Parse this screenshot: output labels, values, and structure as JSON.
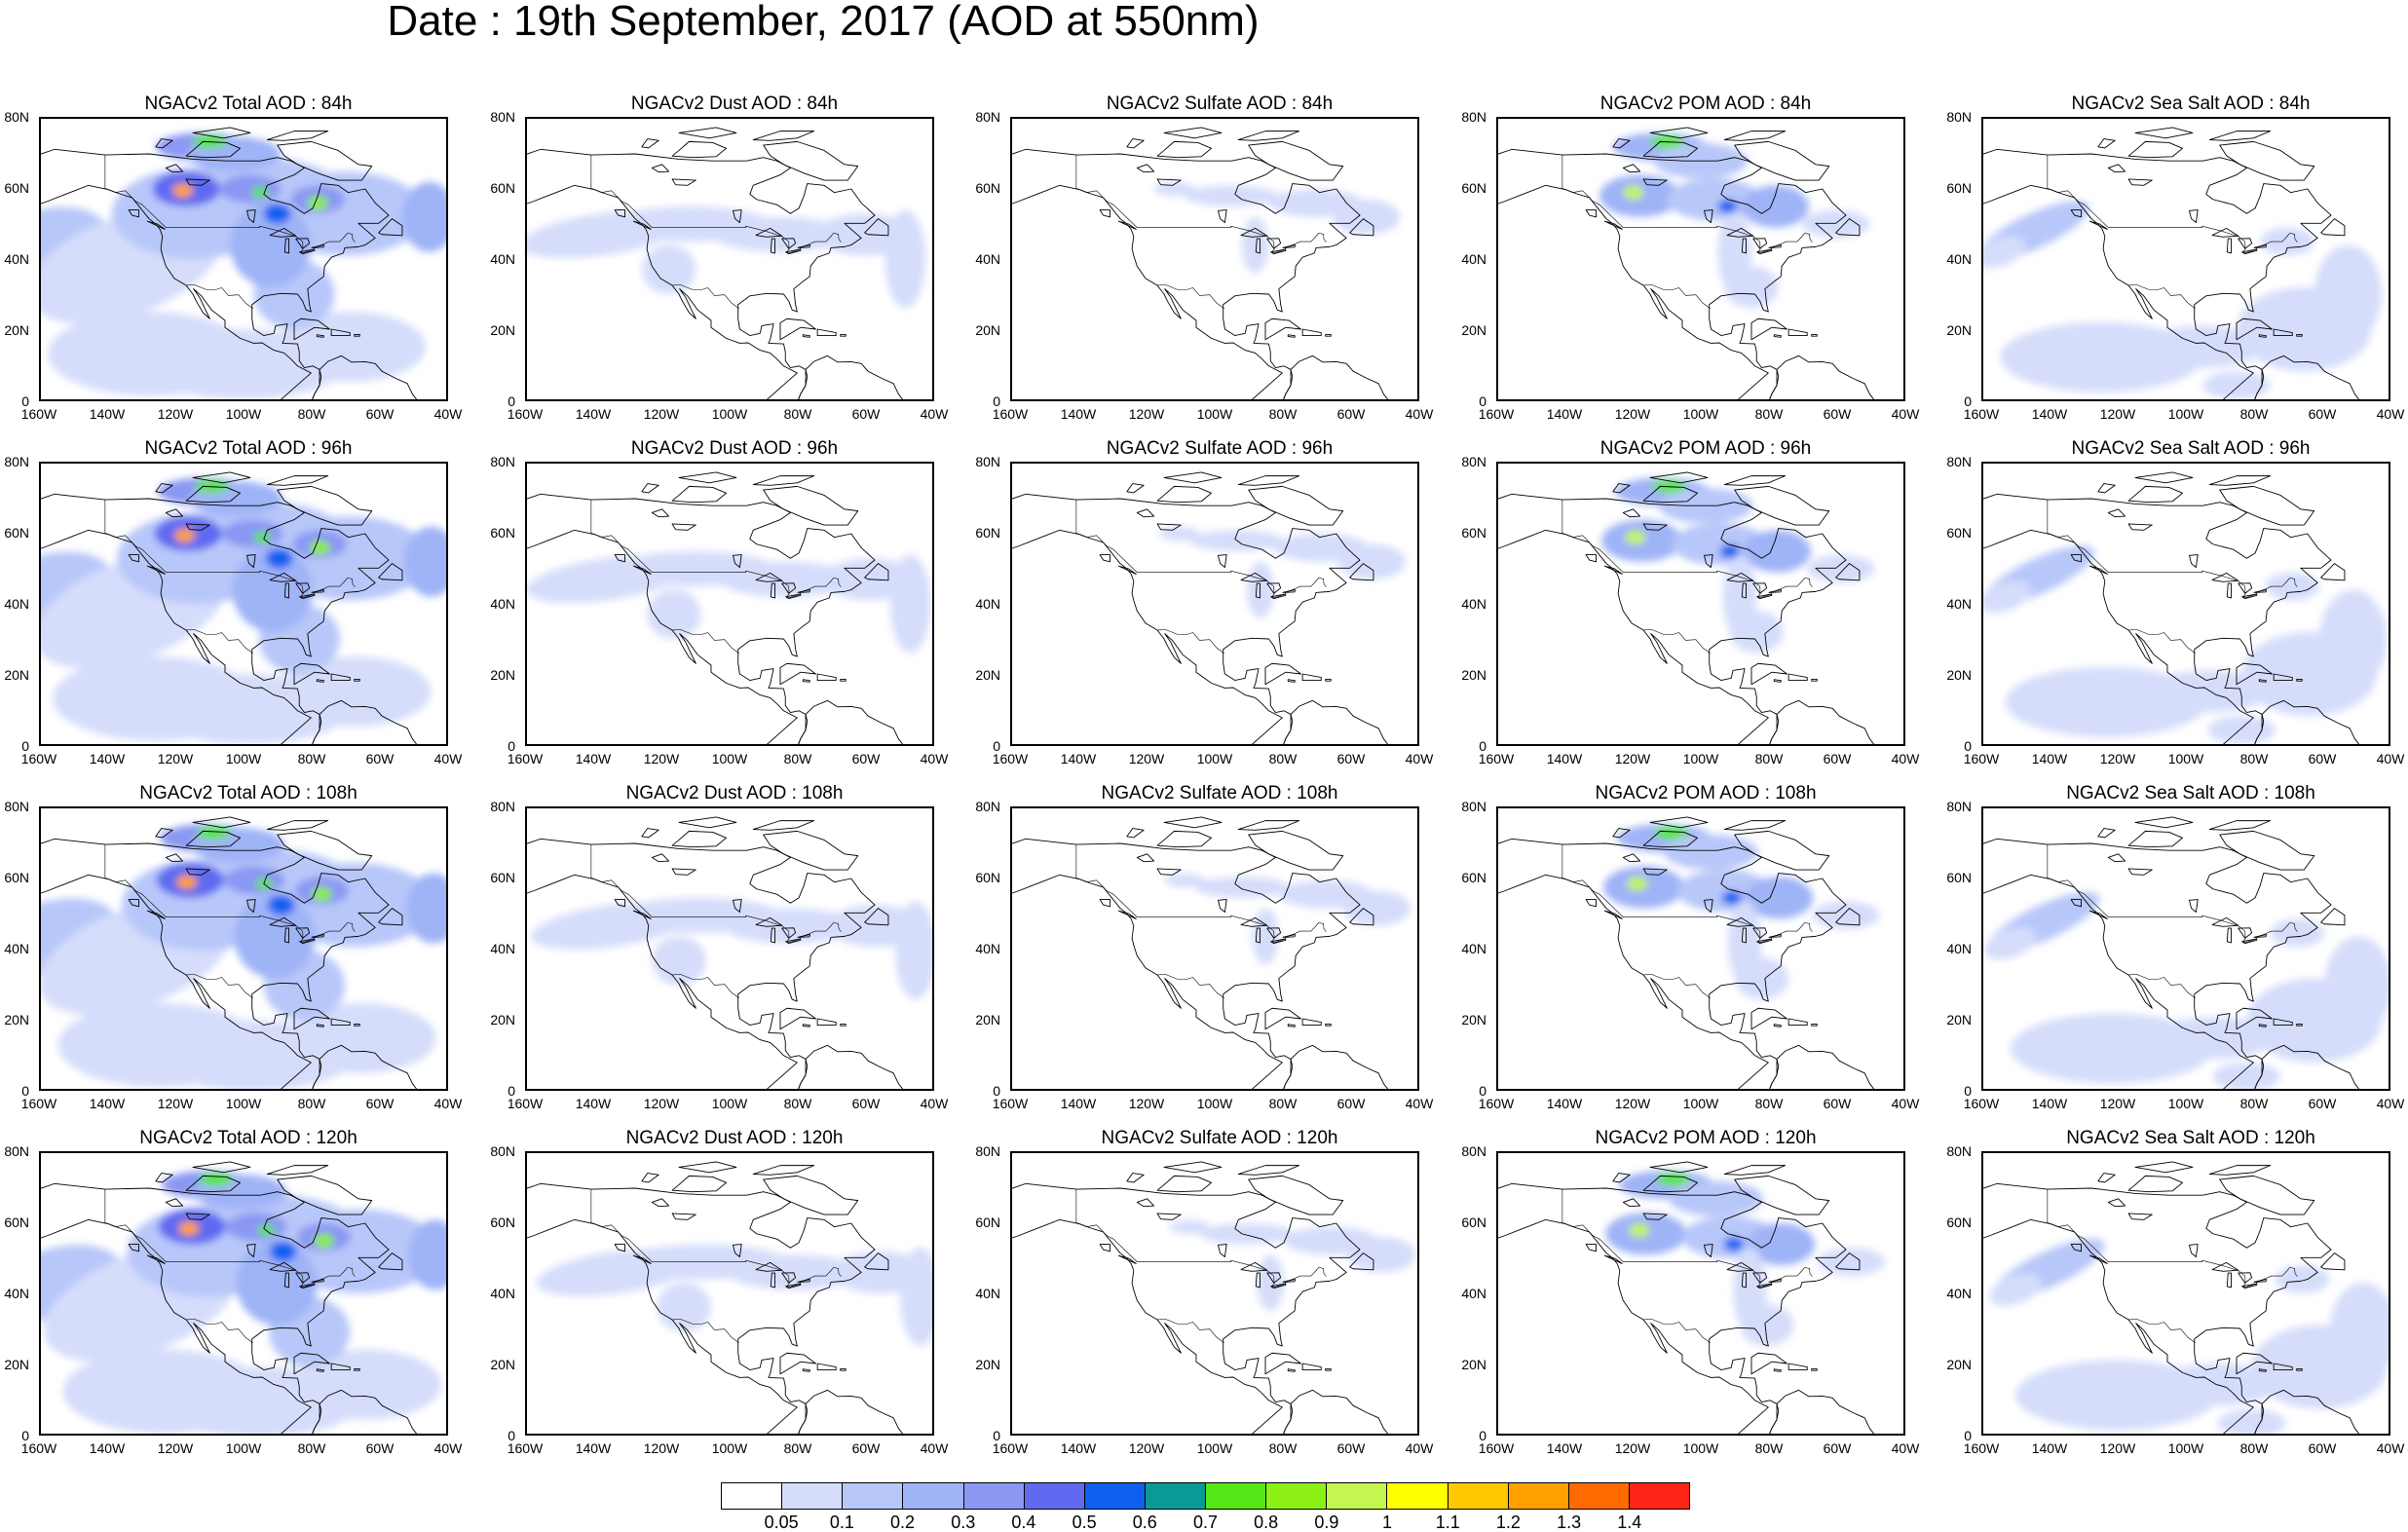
{
  "title": "Date : 19th September, 2017 (AOD at 550nm)",
  "axes": {
    "lat_ticks": [
      "80N",
      "60N",
      "40N",
      "20N",
      "0"
    ],
    "lon_ticks": [
      "160W",
      "140W",
      "120W",
      "100W",
      "80W",
      "60W",
      "40W"
    ],
    "lon_range": [
      -160,
      -40
    ],
    "lat_range": [
      0,
      80
    ]
  },
  "legend": {
    "colors": [
      "#ffffff",
      "#d5ddfb",
      "#b8c7f9",
      "#9fb3f7",
      "#8a97f3",
      "#5f6af0",
      "#1060f0",
      "#0a9a95",
      "#54e818",
      "#8cf014",
      "#c4f550",
      "#ffff00",
      "#ffc800",
      "#ffa000",
      "#ff6a00",
      "#ff2418"
    ],
    "labels": [
      "0.05",
      "0.1",
      "0.2",
      "0.3",
      "0.4",
      "0.5",
      "0.6",
      "0.7",
      "0.8",
      "0.9",
      "1",
      "1.1",
      "1.2",
      "1.3",
      "1.4"
    ]
  },
  "panels": [
    {
      "title": "NGACv2 Total AOD : 84h",
      "species": "total",
      "hour": 84
    },
    {
      "title": "NGACv2 Dust AOD : 84h",
      "species": "dust",
      "hour": 84
    },
    {
      "title": "NGACv2 Sulfate AOD : 84h",
      "species": "sulfate",
      "hour": 84
    },
    {
      "title": "NGACv2 POM AOD : 84h",
      "species": "pom",
      "hour": 84
    },
    {
      "title": "NGACv2 Sea Salt AOD : 84h",
      "species": "seasalt",
      "hour": 84
    },
    {
      "title": "NGACv2 Total AOD : 96h",
      "species": "total",
      "hour": 96
    },
    {
      "title": "NGACv2 Dust AOD : 96h",
      "species": "dust",
      "hour": 96
    },
    {
      "title": "NGACv2 Sulfate AOD : 96h",
      "species": "sulfate",
      "hour": 96
    },
    {
      "title": "NGACv2 POM AOD : 96h",
      "species": "pom",
      "hour": 96
    },
    {
      "title": "NGACv2 Sea Salt AOD : 96h",
      "species": "seasalt",
      "hour": 96
    },
    {
      "title": "NGACv2 Total AOD : 108h",
      "species": "total",
      "hour": 108
    },
    {
      "title": "NGACv2 Dust AOD : 108h",
      "species": "dust",
      "hour": 108
    },
    {
      "title": "NGACv2 Sulfate AOD : 108h",
      "species": "sulfate",
      "hour": 108
    },
    {
      "title": "NGACv2 POM AOD : 108h",
      "species": "pom",
      "hour": 108
    },
    {
      "title": "NGACv2 Sea Salt AOD : 108h",
      "species": "seasalt",
      "hour": 108
    },
    {
      "title": "NGACv2 Total AOD : 120h",
      "species": "total",
      "hour": 120
    },
    {
      "title": "NGACv2 Dust AOD : 120h",
      "species": "dust",
      "hour": 120
    },
    {
      "title": "NGACv2 Sulfate AOD : 120h",
      "species": "sulfate",
      "hour": 120
    },
    {
      "title": "NGACv2 POM AOD : 120h",
      "species": "pom",
      "hour": 120
    },
    {
      "title": "NGACv2 Sea Salt  AOD : 120h",
      "species": "seasalt",
      "hour": 120
    }
  ]
}
